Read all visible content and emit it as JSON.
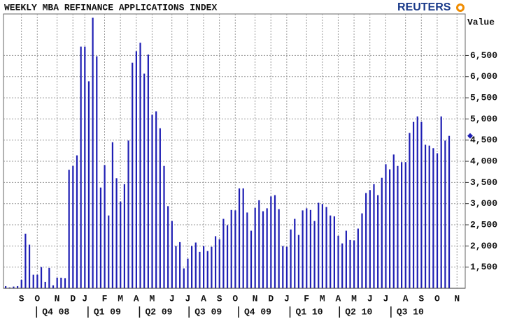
{
  "chart_data": {
    "type": "bar",
    "title": "WEEKLY MBA REFINANCE APPLICATIONS INDEX",
    "brand": "REUTERS",
    "y_label": "Value",
    "color": "#1f1fb4",
    "values": [
      1050,
      1020,
      1040,
      1050,
      1200,
      2290,
      2030,
      1320,
      1320,
      1500,
      1150,
      1480,
      1070,
      1250,
      1250,
      1240,
      3800,
      3890,
      4140,
      6710,
      6710,
      5890,
      7390,
      6480,
      3380,
      3910,
      2720,
      4450,
      3600,
      3050,
      3460,
      4490,
      6330,
      6600,
      6800,
      6070,
      6520,
      5100,
      5180,
      4780,
      3890,
      2940,
      2590,
      2000,
      2090,
      1470,
      1700,
      2000,
      2080,
      1860,
      2000,
      1880,
      1980,
      2230,
      2160,
      2640,
      2490,
      2850,
      2840,
      3360,
      3360,
      2790,
      2360,
      2900,
      3080,
      2820,
      2890,
      3170,
      3200,
      2870,
      2000,
      1980,
      2390,
      2640,
      2260,
      2840,
      2890,
      2850,
      2590,
      3020,
      2990,
      2920,
      2720,
      2700,
      2240,
      2060,
      2360,
      2140,
      2130,
      2410,
      2770,
      3250,
      3320,
      3460,
      3200,
      3610,
      3930,
      3810,
      4160,
      3890,
      3980,
      3980,
      4670,
      4930,
      5060,
      4930,
      4390,
      4370,
      4310,
      4190,
      5060,
      4490,
      4600
    ],
    "ylim": [
      1000,
      7480
    ],
    "yticks": [
      {
        "value": 1500,
        "label": "1,500"
      },
      {
        "value": 2000,
        "label": "2,000"
      },
      {
        "value": 2500,
        "label": "2,500"
      },
      {
        "value": 3000,
        "label": "3,000"
      },
      {
        "value": 3500,
        "label": "3,500"
      },
      {
        "value": 4000,
        "label": "4,000"
      },
      {
        "value": 4500,
        "label": "4,500"
      },
      {
        "value": 5000,
        "label": "5,000"
      },
      {
        "value": 5500,
        "label": "5,500"
      },
      {
        "value": 6000,
        "label": "6,000"
      },
      {
        "value": 6500,
        "label": "6,500"
      }
    ],
    "xticks": [
      {
        "value": 4,
        "label": "S"
      },
      {
        "value": 8,
        "label": "O"
      },
      {
        "value": 13,
        "label": "N"
      },
      {
        "value": 17,
        "label": "D"
      },
      {
        "value": 20,
        "label": "J"
      },
      {
        "value": 25,
        "label": "F"
      },
      {
        "value": 29,
        "label": "M"
      },
      {
        "value": 33,
        "label": "A"
      },
      {
        "value": 37,
        "label": "M"
      },
      {
        "value": 42,
        "label": "J"
      },
      {
        "value": 46,
        "label": "J"
      },
      {
        "value": 50,
        "label": "A"
      },
      {
        "value": 54,
        "label": "S"
      },
      {
        "value": 58,
        "label": "O"
      },
      {
        "value": 63,
        "label": "N"
      },
      {
        "value": 67,
        "label": "D"
      },
      {
        "value": 71,
        "label": "J"
      },
      {
        "value": 76,
        "label": "F"
      },
      {
        "value": 80,
        "label": "M"
      },
      {
        "value": 84,
        "label": "A"
      },
      {
        "value": 88,
        "label": "M"
      },
      {
        "value": 92,
        "label": "J"
      },
      {
        "value": 96,
        "label": "J"
      },
      {
        "value": 101,
        "label": "A"
      },
      {
        "value": 105,
        "label": "S"
      },
      {
        "value": 109,
        "label": "O"
      },
      {
        "value": 114,
        "label": "N"
      }
    ],
    "quarters": [
      {
        "value": 8,
        "label": "Q4 08"
      },
      {
        "value": 21,
        "label": "Q1 09"
      },
      {
        "value": 34,
        "label": "Q2 09"
      },
      {
        "value": 46.5,
        "label": "Q3 09"
      },
      {
        "value": 59,
        "label": "Q4 09"
      },
      {
        "value": 72,
        "label": "Q1 10"
      },
      {
        "value": 84.5,
        "label": "Q2 10"
      },
      {
        "value": 97.5,
        "label": "Q3 10"
      }
    ],
    "grid": true
  }
}
